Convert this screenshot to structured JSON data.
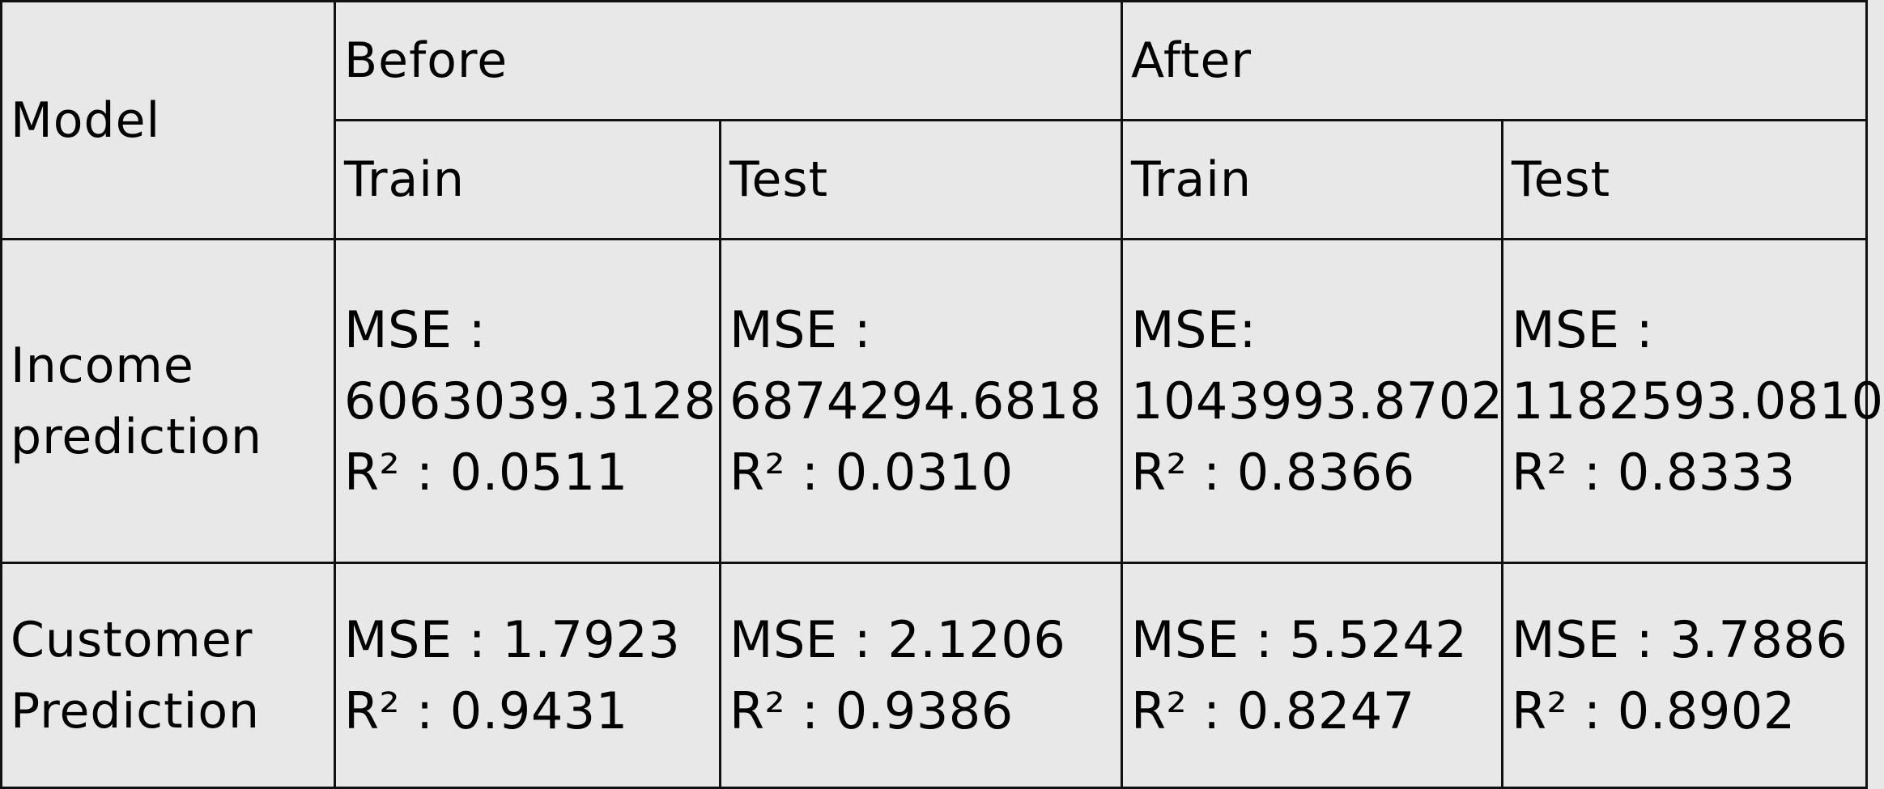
{
  "table": {
    "header": {
      "model": "Model",
      "before": "Before",
      "after": "After",
      "train": "Train",
      "test": "Test"
    },
    "rows": [
      {
        "label_line1": "Income",
        "label_line2": "prediction",
        "before_train": [
          "MSE :",
          "6063039.3128",
          "R² : 0.0511"
        ],
        "before_test": [
          "MSE :",
          "6874294.6818",
          "R² : 0.0310"
        ],
        "after_train": [
          "MSE:",
          "1043993.8702",
          "R² : 0.8366"
        ],
        "after_test": [
          "MSE :",
          "1182593.0810",
          "R² : 0.8333"
        ]
      },
      {
        "label_line1": "Customer",
        "label_line2": "Prediction",
        "before_train": [
          "MSE : 1.7923",
          "R² : 0.9431"
        ],
        "before_test": [
          "MSE : 2.1206",
          "R² : 0.9386"
        ],
        "after_train": [
          "MSE : 5.5242",
          "R² : 0.8247"
        ],
        "after_test": [
          "MSE : 3.7886",
          "R² : 0.8902"
        ]
      }
    ]
  }
}
